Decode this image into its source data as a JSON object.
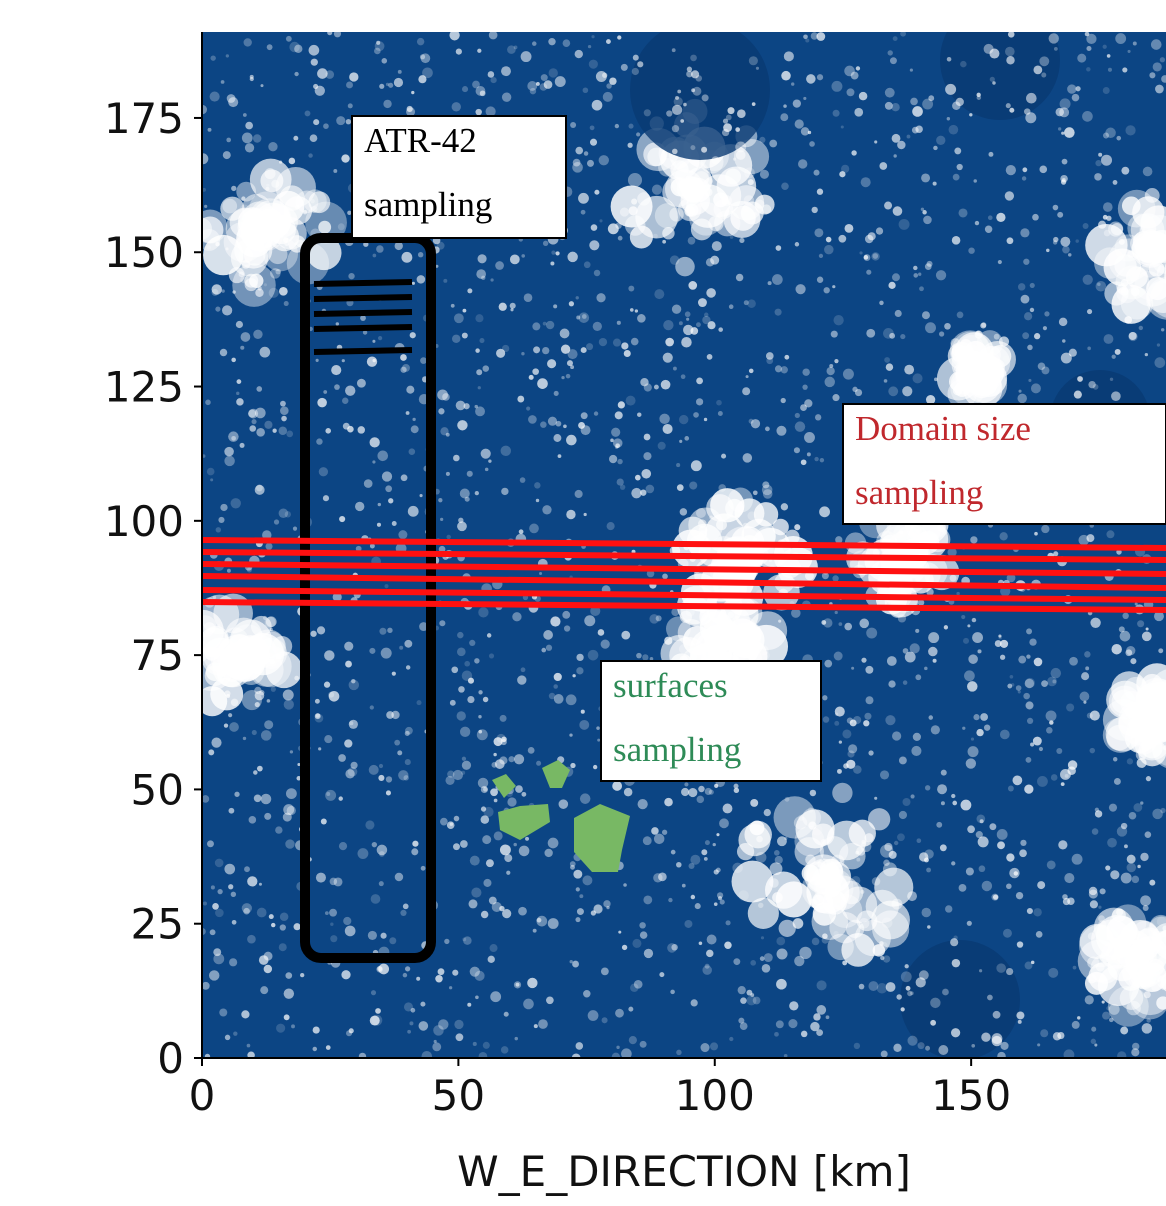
{
  "chart_data": {
    "type": "image",
    "xlabel": "W_E_DIRECTION [km]",
    "xlim": [
      0,
      188
    ],
    "ylim": [
      0,
      191
    ],
    "xticks": [
      0,
      50,
      100,
      150
    ],
    "yticks": [
      0,
      25,
      50,
      75,
      100,
      125,
      150,
      175
    ],
    "annotations": [
      {
        "lines": [
          "ATR-42",
          "sampling"
        ],
        "color": "#000000"
      },
      {
        "lines": [
          "Domain size",
          "sampling"
        ],
        "color": "#c0282d"
      },
      {
        "lines": [
          "surfaces",
          "sampling"
        ],
        "color": "#2e8b57"
      }
    ]
  }
}
